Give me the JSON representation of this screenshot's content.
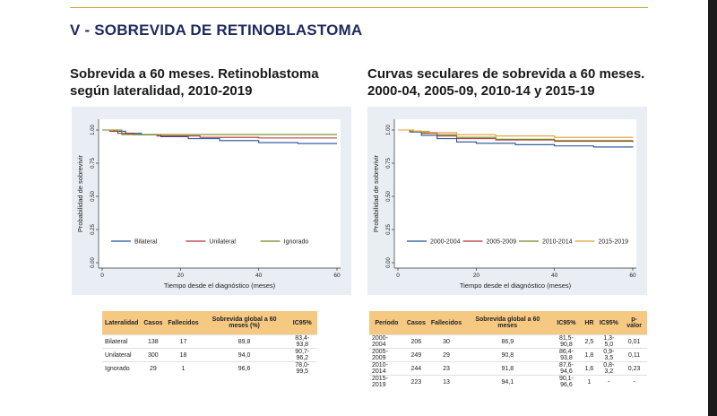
{
  "section_title": "V - SOBREVIDA DE RETINOBLASTOMA",
  "left_title": "Sobrevida a 60 meses. Retinoblastoma según lateralidad, 2010-2019",
  "right_title": "Curvas seculares de sobrevida a 60 meses. 2000-04, 2005-09, 2010-14 y 2015-19",
  "chart_data": [
    {
      "type": "line",
      "ylabel": "Probabilidad de sobrevivir",
      "xlabel": "Tiempo desde el diagnóstico (meses)",
      "xlim": [
        0,
        60
      ],
      "ylim": [
        0,
        1
      ],
      "xticks": [
        "0",
        "20",
        "40",
        "60"
      ],
      "yticks": [
        "0.00",
        "0.25",
        "0.50",
        "0.75",
        "1.00"
      ],
      "legend_position": "bottom-inside",
      "series": [
        {
          "name": "Bilateral",
          "color": "#1f4e9b",
          "points": [
            [
              0,
              1
            ],
            [
              3,
              0.99
            ],
            [
              6,
              0.975
            ],
            [
              10,
              0.965
            ],
            [
              15,
              0.95
            ],
            [
              22,
              0.935
            ],
            [
              30,
              0.92
            ],
            [
              40,
              0.905
            ],
            [
              50,
              0.898
            ],
            [
              60,
              0.898
            ]
          ]
        },
        {
          "name": "Unilateral",
          "color": "#b03030",
          "points": [
            [
              0,
              1
            ],
            [
              2,
              0.99
            ],
            [
              4,
              0.975
            ],
            [
              8,
              0.965
            ],
            [
              14,
              0.955
            ],
            [
              25,
              0.945
            ],
            [
              40,
              0.94
            ],
            [
              60,
              0.94
            ]
          ]
        },
        {
          "name": "Ignorado",
          "color": "#6f8a1c",
          "points": [
            [
              0,
              1
            ],
            [
              4,
              1
            ],
            [
              5,
              0.966
            ],
            [
              60,
              0.966
            ]
          ]
        }
      ]
    },
    {
      "type": "line",
      "ylabel": "Probabilidad de sobrevivir",
      "xlabel": "Tiempo desde el diagnóstico (meses)",
      "xlim": [
        0,
        60
      ],
      "ylim": [
        0,
        1
      ],
      "xticks": [
        "0",
        "20",
        "40",
        "60"
      ],
      "yticks": [
        "0.00",
        "0.25",
        "0.50",
        "0.75",
        "1.00"
      ],
      "legend_position": "bottom-inside",
      "series": [
        {
          "name": "2000-2004",
          "color": "#1f4e9b",
          "points": [
            [
              0,
              1
            ],
            [
              3,
              0.985
            ],
            [
              6,
              0.96
            ],
            [
              10,
              0.935
            ],
            [
              15,
              0.91
            ],
            [
              20,
              0.9
            ],
            [
              30,
              0.89
            ],
            [
              40,
              0.88
            ],
            [
              50,
              0.872
            ],
            [
              60,
              0.869
            ]
          ]
        },
        {
          "name": "2005-2009",
          "color": "#b03030",
          "points": [
            [
              0,
              1
            ],
            [
              3,
              0.99
            ],
            [
              6,
              0.975
            ],
            [
              10,
              0.955
            ],
            [
              15,
              0.935
            ],
            [
              25,
              0.925
            ],
            [
              40,
              0.915
            ],
            [
              60,
              0.908
            ]
          ]
        },
        {
          "name": "2010-2014",
          "color": "#6f8a1c",
          "points": [
            [
              0,
              1
            ],
            [
              3,
              0.99
            ],
            [
              6,
              0.98
            ],
            [
              10,
              0.965
            ],
            [
              15,
              0.945
            ],
            [
              25,
              0.93
            ],
            [
              40,
              0.92
            ],
            [
              60,
              0.918
            ]
          ]
        },
        {
          "name": "2015-2019",
          "color": "#e39a34",
          "points": [
            [
              0,
              1
            ],
            [
              4,
              0.99
            ],
            [
              8,
              0.98
            ],
            [
              15,
              0.965
            ],
            [
              25,
              0.955
            ],
            [
              40,
              0.945
            ],
            [
              60,
              0.941
            ]
          ]
        }
      ]
    }
  ],
  "table_left": {
    "headers": [
      "Lateralidad",
      "Casos",
      "Fallecidos",
      "Sobrevida global a 60 meses (%)",
      "IC95%"
    ],
    "rows": [
      [
        "Bilateral",
        "138",
        "17",
        "89,8",
        "83,4-93,8"
      ],
      [
        "Unilateral",
        "300",
        "18",
        "94,0",
        "90,7-96,2"
      ],
      [
        "Ignorado",
        "29",
        "1",
        "96,6",
        "78,0-99,5"
      ]
    ]
  },
  "table_right": {
    "headers": [
      "Período",
      "Casos",
      "Fallecidos",
      "Sobrevida global a 60 meses",
      "IC95%",
      "HR",
      "IC95%",
      "p-valor"
    ],
    "rows": [
      [
        "2000-2004",
        "206",
        "30",
        "86,9",
        "81,5-90,8",
        "2,5",
        "1,3-5,0",
        "0,01"
      ],
      [
        "2005-2009",
        "249",
        "29",
        "90,8",
        "86,4-93,8",
        "1,8",
        "0,9-3,5",
        "0,11"
      ],
      [
        "2010-2014",
        "244",
        "23",
        "91,8",
        "87,6-94,6",
        "1,6",
        "0,8-3,2",
        "0,23"
      ],
      [
        "2015-2019",
        "223",
        "13",
        "94,1",
        "90,1-96,6",
        "1",
        "-",
        "-"
      ]
    ]
  }
}
